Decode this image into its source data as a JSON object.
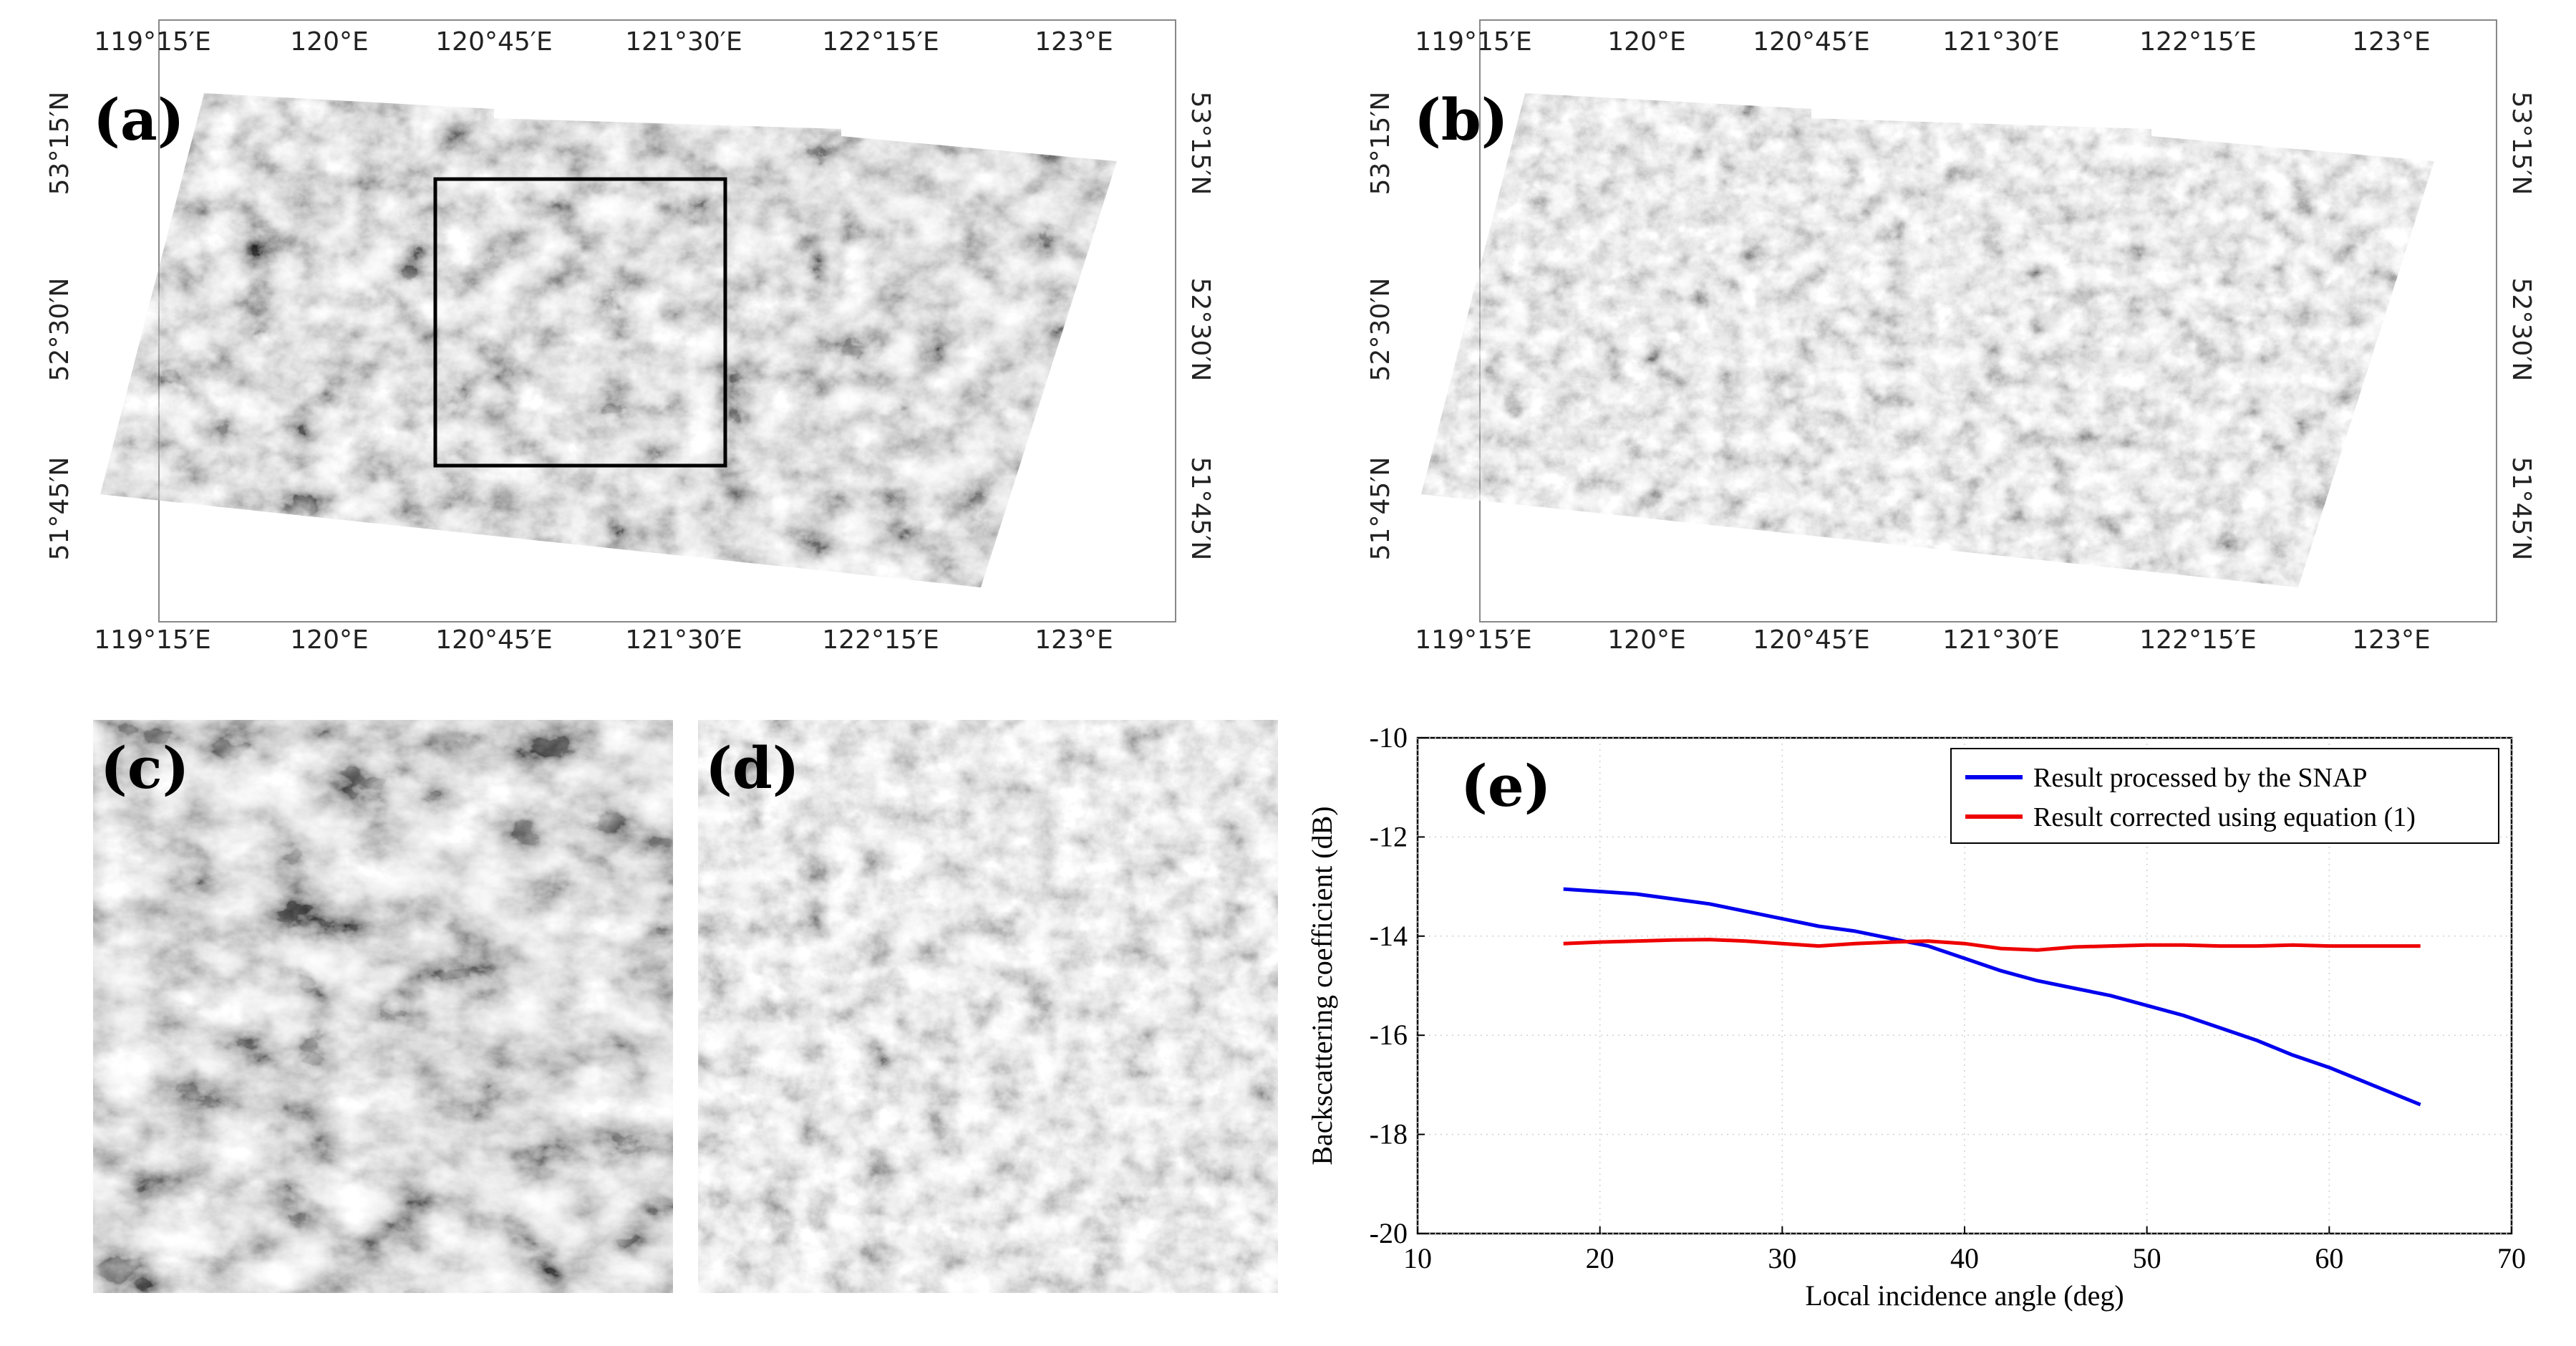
{
  "maps": {
    "lon_ticks": [
      "119°15′E",
      "120°E",
      "120°45′E",
      "121°30′E",
      "122°15′E",
      "123°E"
    ],
    "lat_ticks": [
      "53°15′N",
      "52°30′N",
      "51°45′N"
    ]
  },
  "panels": {
    "a": "(a)",
    "b": "(b)",
    "c": "(c)",
    "d": "(d)",
    "e": "(e)"
  },
  "chart_data": {
    "type": "line",
    "xlabel": "Local incidence angle (deg)",
    "ylabel": "Backscattering coefficient (dB)",
    "xlim": [
      10,
      70
    ],
    "ylim": [
      -20,
      -10
    ],
    "xticks": [
      10,
      20,
      30,
      40,
      50,
      60,
      70
    ],
    "yticks": [
      -10,
      -12,
      -14,
      -16,
      -18,
      -20
    ],
    "grid": true,
    "legend_position": "top-right",
    "series": [
      {
        "name": "Result processed by the SNAP",
        "color": "#0000ee",
        "x": [
          18,
          20,
          22,
          24,
          26,
          28,
          30,
          32,
          34,
          36,
          38,
          40,
          42,
          44,
          46,
          48,
          50,
          52,
          54,
          56,
          58,
          60,
          62,
          64,
          65
        ],
        "y": [
          -13.05,
          -13.1,
          -13.15,
          -13.25,
          -13.35,
          -13.5,
          -13.65,
          -13.8,
          -13.9,
          -14.05,
          -14.2,
          -14.45,
          -14.7,
          -14.9,
          -15.05,
          -15.2,
          -15.4,
          -15.6,
          -15.85,
          -16.1,
          -16.4,
          -16.65,
          -16.95,
          -17.25,
          -17.4
        ]
      },
      {
        "name": "Result corrected using equation (1)",
        "color": "#ee0000",
        "x": [
          18,
          20,
          22,
          24,
          26,
          28,
          30,
          32,
          34,
          36,
          38,
          40,
          42,
          44,
          46,
          48,
          50,
          52,
          54,
          56,
          58,
          60,
          62,
          64,
          65
        ],
        "y": [
          -14.15,
          -14.12,
          -14.1,
          -14.08,
          -14.07,
          -14.1,
          -14.15,
          -14.2,
          -14.15,
          -14.12,
          -14.1,
          -14.15,
          -14.25,
          -14.28,
          -14.22,
          -14.2,
          -14.18,
          -14.18,
          -14.2,
          -14.2,
          -14.18,
          -14.2,
          -14.2,
          -14.2,
          -14.2
        ]
      }
    ]
  }
}
